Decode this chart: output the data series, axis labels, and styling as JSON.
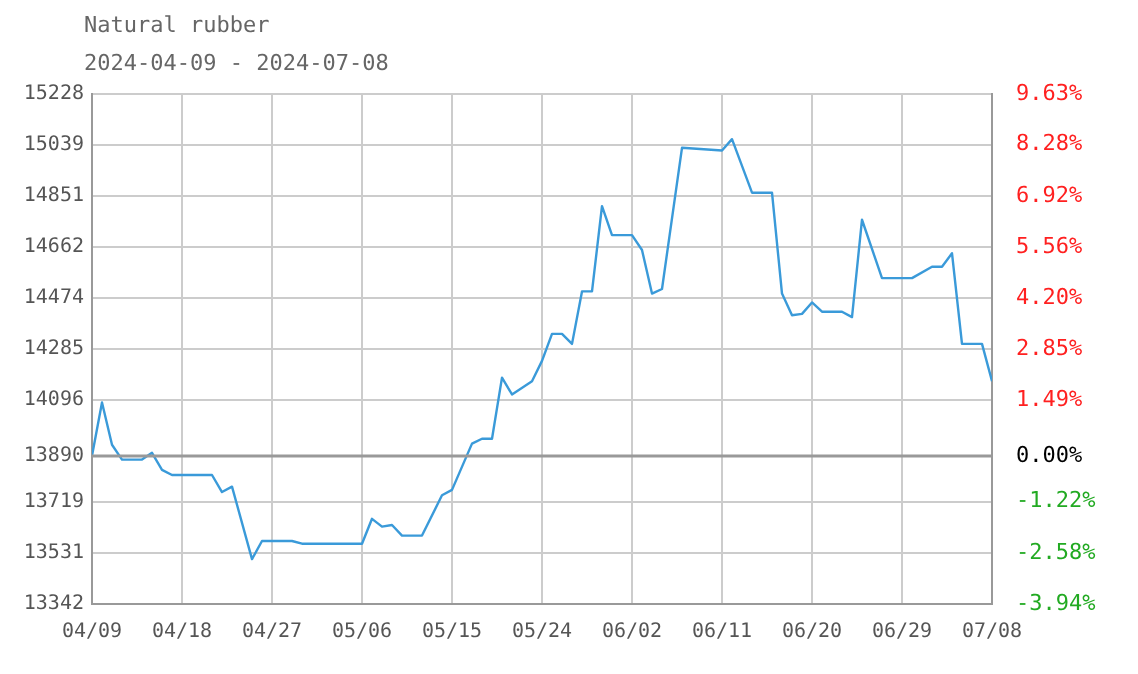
{
  "chart_data": {
    "type": "line",
    "title": "Natural rubber",
    "subtitle": "2024-04-09 - 2024-07-08",
    "x": [
      "2024-04-09",
      "2024-04-10",
      "2024-04-11",
      "2024-04-12",
      "2024-04-14",
      "2024-04-15",
      "2024-04-16",
      "2024-04-17",
      "2024-04-21",
      "2024-04-22",
      "2024-04-23",
      "2024-04-25",
      "2024-04-26",
      "2024-04-29",
      "2024-04-30",
      "2024-05-06",
      "2024-05-07",
      "2024-05-08",
      "2024-05-09",
      "2024-05-10",
      "2024-05-12",
      "2024-05-14",
      "2024-05-15",
      "2024-05-17",
      "2024-05-18",
      "2024-05-19",
      "2024-05-20",
      "2024-05-21",
      "2024-05-23",
      "2024-05-24",
      "2024-05-25",
      "2024-05-26",
      "2024-05-27",
      "2024-05-28",
      "2024-05-29",
      "2024-05-30",
      "2024-05-31",
      "2024-06-02",
      "2024-06-03",
      "2024-06-04",
      "2024-06-05",
      "2024-06-07",
      "2024-06-11",
      "2024-06-12",
      "2024-06-14",
      "2024-06-16",
      "2024-06-17",
      "2024-06-18",
      "2024-06-19",
      "2024-06-20",
      "2024-06-21",
      "2024-06-23",
      "2024-06-24",
      "2024-06-25",
      "2024-06-27",
      "2024-06-30",
      "2024-07-02",
      "2024-07-03",
      "2024-07-04",
      "2024-07-05",
      "2024-07-07",
      "2024-07-08"
    ],
    "series": [
      {
        "color": "#3a9ad9",
        "values": [
          13890,
          14087,
          13931,
          13876,
          13876,
          13901,
          13838,
          13819,
          13819,
          13756,
          13776,
          13508,
          13575,
          13575,
          13565,
          13565,
          13657,
          13628,
          13634,
          13595,
          13595,
          13744,
          13764,
          13935,
          13953,
          13953,
          14179,
          14117,
          14166,
          14241,
          14341,
          14341,
          14304,
          14498,
          14498,
          14813,
          14706,
          14706,
          14651,
          14490,
          14507,
          15029,
          15019,
          15061,
          14863,
          14863,
          14490,
          14410,
          14415,
          14457,
          14423,
          14423,
          14403,
          14763,
          14547,
          14547,
          14589,
          14589,
          14639,
          14304,
          14304,
          14166
        ]
      }
    ],
    "xlim": [
      "2024-04-09",
      "2024-07-08"
    ],
    "xticks": [
      {
        "value": "2024-04-09",
        "label": "04/09"
      },
      {
        "value": "2024-04-18",
        "label": "04/18"
      },
      {
        "value": "2024-04-27",
        "label": "04/27"
      },
      {
        "value": "2024-05-06",
        "label": "05/06"
      },
      {
        "value": "2024-05-15",
        "label": "05/15"
      },
      {
        "value": "2024-05-24",
        "label": "05/24"
      },
      {
        "value": "2024-06-02",
        "label": "06/02"
      },
      {
        "value": "2024-06-11",
        "label": "06/11"
      },
      {
        "value": "2024-06-20",
        "label": "06/20"
      },
      {
        "value": "2024-06-29",
        "label": "06/29"
      },
      {
        "value": "2024-07-08",
        "label": "07/08"
      }
    ],
    "ylim": [
      13342,
      15228
    ],
    "yticks": [
      13342,
      13531,
      13719,
      13890,
      14096,
      14285,
      14474,
      14662,
      14851,
      15039,
      15228
    ],
    "y2lim": [
      -3.94,
      9.63
    ],
    "y2ticks": [
      {
        "value": -3.94,
        "label": "-3.94%"
      },
      {
        "value": -2.58,
        "label": "-2.58%"
      },
      {
        "value": -1.22,
        "label": "-1.22%"
      },
      {
        "value": 0,
        "label": "0.00%"
      },
      {
        "value": 1.49,
        "label": "1.49%"
      },
      {
        "value": 2.85,
        "label": "2.85%"
      },
      {
        "value": 4.2,
        "label": "4.20%"
      },
      {
        "value": 5.56,
        "label": "5.56%"
      },
      {
        "value": 6.92,
        "label": "6.92%"
      },
      {
        "value": 8.28,
        "label": "8.28%"
      },
      {
        "value": 9.63,
        "label": "9.63%"
      }
    ],
    "ref_lines": [
      {
        "axis": "y2",
        "value": 0,
        "color": "#999999",
        "line_style": "solid"
      }
    ],
    "grid": true,
    "legend": false,
    "marker": "none",
    "line_style": "solid"
  }
}
